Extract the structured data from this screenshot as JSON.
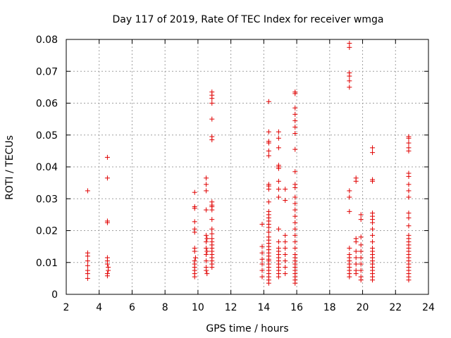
{
  "chart_data": {
    "type": "scatter",
    "title": "Day 117 of 2019, Rate Of TEC Index for receiver wmga",
    "xlabel": "GPS time / hours",
    "ylabel": "ROTI / TECUs",
    "xlim": [
      2,
      24
    ],
    "ylim": [
      0,
      0.08
    ],
    "grid": true,
    "xticks": [
      2,
      4,
      6,
      8,
      10,
      12,
      14,
      16,
      18,
      20,
      22,
      24
    ],
    "yticks": [
      0,
      0.01,
      0.02,
      0.03,
      0.04,
      0.05,
      0.06,
      0.07,
      0.08
    ],
    "xtick_labels": [
      "2",
      "4",
      "6",
      "8",
      "10",
      "12",
      "14",
      "16",
      "18",
      "20",
      "22",
      "24"
    ],
    "ytick_labels": [
      "0",
      "0.01",
      "0.02",
      "0.03",
      "0.04",
      "0.05",
      "0.06",
      "0.07",
      "0.08"
    ],
    "marker": "+",
    "marker_color": "#e00000",
    "series": [
      {
        "name": "ROTI",
        "points": [
          [
            3.3,
            0.0325
          ],
          [
            3.3,
            0.013
          ],
          [
            3.3,
            0.012
          ],
          [
            3.3,
            0.0105
          ],
          [
            3.3,
            0.009
          ],
          [
            3.3,
            0.0075
          ],
          [
            3.3,
            0.0065
          ],
          [
            3.3,
            0.005
          ],
          [
            4.5,
            0.043
          ],
          [
            4.5,
            0.0365
          ],
          [
            4.5,
            0.023
          ],
          [
            4.5,
            0.0225
          ],
          [
            4.5,
            0.0115
          ],
          [
            4.5,
            0.0105
          ],
          [
            4.5,
            0.0095
          ],
          [
            4.55,
            0.0085
          ],
          [
            4.55,
            0.0075
          ],
          [
            4.5,
            0.0065
          ],
          [
            4.5,
            0.0058
          ],
          [
            9.8,
            0.032
          ],
          [
            9.8,
            0.0275
          ],
          [
            9.8,
            0.027
          ],
          [
            9.8,
            0.0228
          ],
          [
            9.8,
            0.0205
          ],
          [
            9.8,
            0.0195
          ],
          [
            9.8,
            0.0145
          ],
          [
            9.8,
            0.0135
          ],
          [
            9.85,
            0.0115
          ],
          [
            9.8,
            0.0105
          ],
          [
            9.8,
            0.0095
          ],
          [
            9.8,
            0.0085
          ],
          [
            9.8,
            0.0075
          ],
          [
            9.8,
            0.0065
          ],
          [
            9.8,
            0.0055
          ],
          [
            10.5,
            0.0365
          ],
          [
            10.5,
            0.0345
          ],
          [
            10.5,
            0.0325
          ],
          [
            10.5,
            0.0265
          ],
          [
            10.5,
            0.0185
          ],
          [
            10.55,
            0.0175
          ],
          [
            10.5,
            0.0165
          ],
          [
            10.5,
            0.0145
          ],
          [
            10.55,
            0.0135
          ],
          [
            10.5,
            0.0125
          ],
          [
            10.5,
            0.0105
          ],
          [
            10.5,
            0.0085
          ],
          [
            10.5,
            0.0075
          ],
          [
            10.55,
            0.0065
          ],
          [
            10.85,
            0.0635
          ],
          [
            10.85,
            0.0625
          ],
          [
            10.85,
            0.0615
          ],
          [
            10.85,
            0.06
          ],
          [
            10.85,
            0.055
          ],
          [
            10.85,
            0.0495
          ],
          [
            10.85,
            0.0485
          ],
          [
            10.85,
            0.029
          ],
          [
            10.85,
            0.028
          ],
          [
            10.85,
            0.0275
          ],
          [
            10.85,
            0.0265
          ],
          [
            10.85,
            0.0235
          ],
          [
            10.85,
            0.0205
          ],
          [
            10.85,
            0.019
          ],
          [
            10.85,
            0.0175
          ],
          [
            10.85,
            0.0165
          ],
          [
            10.85,
            0.0155
          ],
          [
            10.85,
            0.0145
          ],
          [
            10.85,
            0.0135
          ],
          [
            10.85,
            0.0125
          ],
          [
            10.85,
            0.0115
          ],
          [
            10.85,
            0.0105
          ],
          [
            10.85,
            0.0095
          ],
          [
            10.85,
            0.0085
          ],
          [
            13.9,
            0.022
          ],
          [
            13.9,
            0.015
          ],
          [
            13.9,
            0.013
          ],
          [
            13.9,
            0.011
          ],
          [
            13.9,
            0.0095
          ],
          [
            13.9,
            0.0075
          ],
          [
            13.9,
            0.0055
          ],
          [
            14.3,
            0.0605
          ],
          [
            14.3,
            0.051
          ],
          [
            14.3,
            0.048
          ],
          [
            14.3,
            0.0475
          ],
          [
            14.3,
            0.045
          ],
          [
            14.3,
            0.0435
          ],
          [
            14.3,
            0.0345
          ],
          [
            14.3,
            0.034
          ],
          [
            14.3,
            0.033
          ],
          [
            14.3,
            0.029
          ],
          [
            14.3,
            0.026
          ],
          [
            14.3,
            0.025
          ],
          [
            14.3,
            0.024
          ],
          [
            14.3,
            0.023
          ],
          [
            14.3,
            0.022
          ],
          [
            14.3,
            0.021
          ],
          [
            14.3,
            0.0195
          ],
          [
            14.3,
            0.018
          ],
          [
            14.3,
            0.017
          ],
          [
            14.3,
            0.016
          ],
          [
            14.3,
            0.015
          ],
          [
            14.3,
            0.014
          ],
          [
            14.3,
            0.013
          ],
          [
            14.3,
            0.012
          ],
          [
            14.3,
            0.011
          ],
          [
            14.3,
            0.0105
          ],
          [
            14.3,
            0.0095
          ],
          [
            14.3,
            0.0085
          ],
          [
            14.3,
            0.0075
          ],
          [
            14.3,
            0.0065
          ],
          [
            14.3,
            0.0055
          ],
          [
            14.3,
            0.0045
          ],
          [
            14.3,
            0.0035
          ],
          [
            14.9,
            0.051
          ],
          [
            14.9,
            0.049
          ],
          [
            14.9,
            0.046
          ],
          [
            14.9,
            0.0405
          ],
          [
            14.9,
            0.04
          ],
          [
            14.9,
            0.0395
          ],
          [
            14.9,
            0.0355
          ],
          [
            14.9,
            0.033
          ],
          [
            14.9,
            0.0305
          ],
          [
            14.9,
            0.0205
          ],
          [
            14.9,
            0.0165
          ],
          [
            14.9,
            0.0145
          ],
          [
            14.9,
            0.0135
          ],
          [
            14.9,
            0.0125
          ],
          [
            14.9,
            0.0115
          ],
          [
            14.9,
            0.0105
          ],
          [
            14.9,
            0.0095
          ],
          [
            14.9,
            0.0085
          ],
          [
            14.9,
            0.0075
          ],
          [
            14.9,
            0.0065
          ],
          [
            14.9,
            0.0055
          ],
          [
            15.3,
            0.033
          ],
          [
            15.3,
            0.0295
          ],
          [
            15.3,
            0.0185
          ],
          [
            15.3,
            0.0165
          ],
          [
            15.3,
            0.0145
          ],
          [
            15.3,
            0.0125
          ],
          [
            15.3,
            0.0105
          ],
          [
            15.3,
            0.0085
          ],
          [
            15.3,
            0.0065
          ],
          [
            15.9,
            0.0635
          ],
          [
            15.9,
            0.063
          ],
          [
            15.9,
            0.0585
          ],
          [
            15.9,
            0.0565
          ],
          [
            15.9,
            0.0545
          ],
          [
            15.9,
            0.0525
          ],
          [
            15.9,
            0.0505
          ],
          [
            15.9,
            0.0455
          ],
          [
            15.9,
            0.0385
          ],
          [
            15.9,
            0.0345
          ],
          [
            15.9,
            0.0335
          ],
          [
            15.9,
            0.0305
          ],
          [
            15.9,
            0.0285
          ],
          [
            15.9,
            0.0265
          ],
          [
            15.9,
            0.0245
          ],
          [
            15.9,
            0.0225
          ],
          [
            15.9,
            0.0205
          ],
          [
            15.9,
            0.0185
          ],
          [
            15.9,
            0.0165
          ],
          [
            15.9,
            0.0145
          ],
          [
            15.9,
            0.0125
          ],
          [
            15.9,
            0.0115
          ],
          [
            15.9,
            0.0105
          ],
          [
            15.9,
            0.0095
          ],
          [
            15.9,
            0.0085
          ],
          [
            15.9,
            0.0075
          ],
          [
            15.9,
            0.0065
          ],
          [
            15.9,
            0.0055
          ],
          [
            15.9,
            0.0045
          ],
          [
            15.9,
            0.0035
          ],
          [
            19.2,
            0.0788
          ],
          [
            19.2,
            0.0775
          ],
          [
            19.2,
            0.0695
          ],
          [
            19.2,
            0.0685
          ],
          [
            19.2,
            0.067
          ],
          [
            19.2,
            0.065
          ],
          [
            19.2,
            0.0325
          ],
          [
            19.2,
            0.0305
          ],
          [
            19.2,
            0.026
          ],
          [
            19.2,
            0.0145
          ],
          [
            19.2,
            0.0125
          ],
          [
            19.2,
            0.0115
          ],
          [
            19.2,
            0.0105
          ],
          [
            19.2,
            0.0095
          ],
          [
            19.2,
            0.0085
          ],
          [
            19.2,
            0.0075
          ],
          [
            19.2,
            0.0065
          ],
          [
            19.2,
            0.0055
          ],
          [
            19.6,
            0.0365
          ],
          [
            19.6,
            0.0355
          ],
          [
            19.6,
            0.0175
          ],
          [
            19.6,
            0.0165
          ],
          [
            19.6,
            0.0135
          ],
          [
            19.6,
            0.0115
          ],
          [
            19.6,
            0.0095
          ],
          [
            19.6,
            0.0075
          ],
          [
            19.6,
            0.0065
          ],
          [
            19.9,
            0.025
          ],
          [
            19.9,
            0.0235
          ],
          [
            19.9,
            0.018
          ],
          [
            19.9,
            0.0155
          ],
          [
            19.9,
            0.0135
          ],
          [
            19.9,
            0.0115
          ],
          [
            19.9,
            0.0095
          ],
          [
            19.9,
            0.0075
          ],
          [
            19.9,
            0.0055
          ],
          [
            19.9,
            0.0045
          ],
          [
            20.6,
            0.046
          ],
          [
            20.6,
            0.0445
          ],
          [
            20.6,
            0.036
          ],
          [
            20.6,
            0.0355
          ],
          [
            20.6,
            0.0255
          ],
          [
            20.6,
            0.0245
          ],
          [
            20.6,
            0.0235
          ],
          [
            20.6,
            0.0225
          ],
          [
            20.6,
            0.0205
          ],
          [
            20.6,
            0.0185
          ],
          [
            20.6,
            0.0165
          ],
          [
            20.6,
            0.0145
          ],
          [
            20.6,
            0.0135
          ],
          [
            20.6,
            0.0125
          ],
          [
            20.6,
            0.0115
          ],
          [
            20.6,
            0.0105
          ],
          [
            20.6,
            0.0095
          ],
          [
            20.6,
            0.0085
          ],
          [
            20.6,
            0.0075
          ],
          [
            20.6,
            0.0065
          ],
          [
            20.6,
            0.0055
          ],
          [
            20.6,
            0.0045
          ],
          [
            22.8,
            0.0495
          ],
          [
            22.8,
            0.049
          ],
          [
            22.8,
            0.0475
          ],
          [
            22.8,
            0.046
          ],
          [
            22.8,
            0.045
          ],
          [
            22.8,
            0.038
          ],
          [
            22.8,
            0.037
          ],
          [
            22.8,
            0.0345
          ],
          [
            22.8,
            0.0325
          ],
          [
            22.8,
            0.0305
          ],
          [
            22.8,
            0.0255
          ],
          [
            22.8,
            0.024
          ],
          [
            22.8,
            0.0215
          ],
          [
            22.8,
            0.0185
          ],
          [
            22.8,
            0.0175
          ],
          [
            22.8,
            0.0165
          ],
          [
            22.8,
            0.0155
          ],
          [
            22.8,
            0.0145
          ],
          [
            22.8,
            0.0135
          ],
          [
            22.8,
            0.0125
          ],
          [
            22.8,
            0.0115
          ],
          [
            22.8,
            0.0105
          ],
          [
            22.8,
            0.0095
          ],
          [
            22.8,
            0.0085
          ],
          [
            22.8,
            0.0075
          ],
          [
            22.8,
            0.0065
          ],
          [
            22.8,
            0.0055
          ],
          [
            22.8,
            0.0045
          ]
        ]
      }
    ]
  }
}
